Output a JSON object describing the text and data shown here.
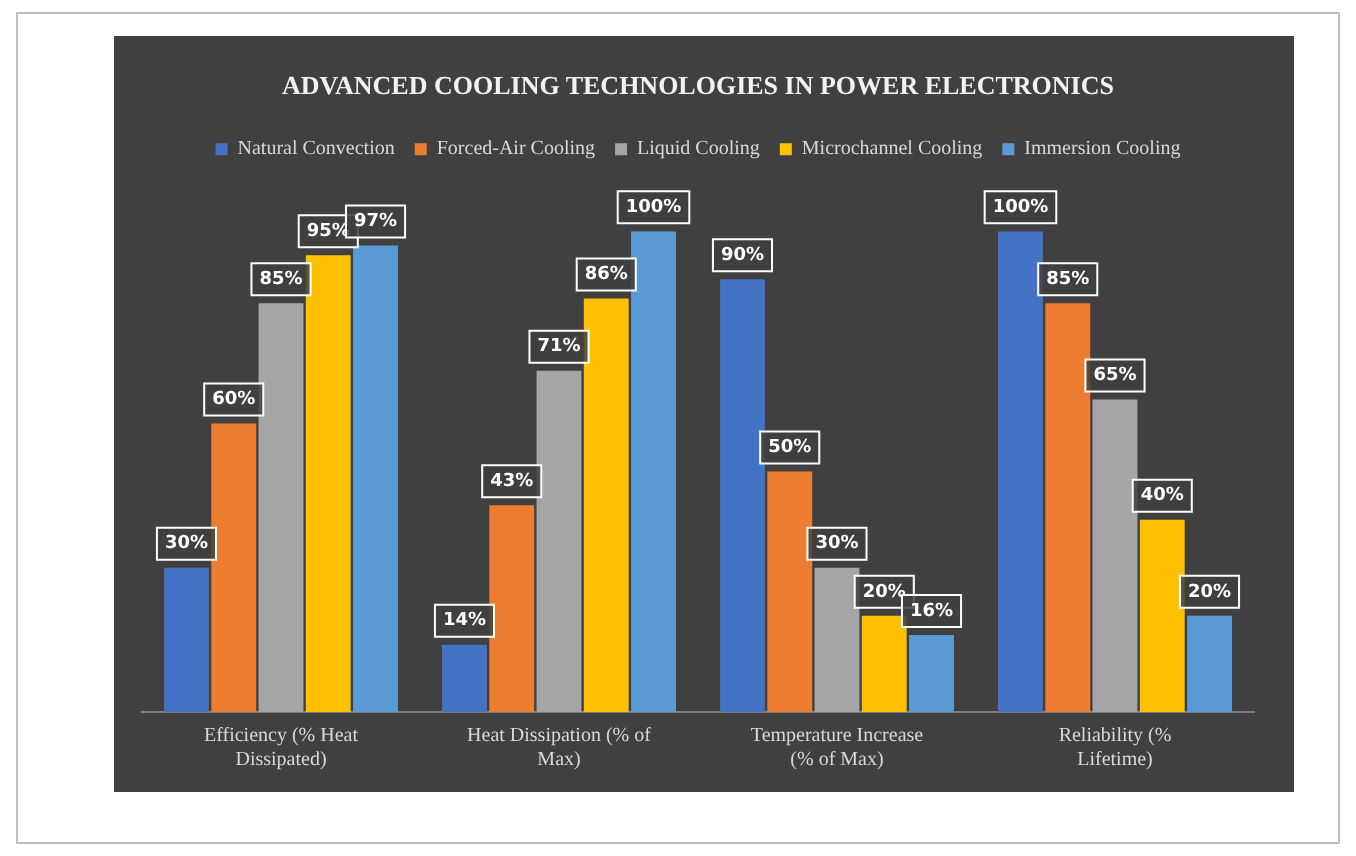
{
  "chart_data": {
    "type": "bar",
    "title": "ADVANCED COOLING TECHNOLOGIES IN POWER ELECTRONICS",
    "categories": [
      "Efficiency (% Heat Dissipated)",
      "Heat Dissipation (% of Max)",
      "Temperature Increase (% of Max)",
      "Reliability (% Lifetime)"
    ],
    "series": [
      {
        "name": "Natural Convection",
        "color": "#4472c4",
        "values": [
          30,
          14,
          90,
          100
        ],
        "value_labels": [
          "30%",
          "14%",
          "90%",
          "100%"
        ]
      },
      {
        "name": "Forced-Air Cooling",
        "color": "#ed7d31",
        "values": [
          60,
          43,
          50,
          85
        ],
        "value_labels": [
          "60%",
          "43%",
          "50%",
          "85%"
        ]
      },
      {
        "name": "Liquid Cooling",
        "color": "#a5a5a5",
        "values": [
          85,
          71,
          30,
          65
        ],
        "value_labels": [
          "85%",
          "71%",
          "30%",
          "65%"
        ]
      },
      {
        "name": "Microchannel Cooling",
        "color": "#ffc000",
        "values": [
          95,
          86,
          20,
          40
        ],
        "value_labels": [
          "95%",
          "86%",
          "20%",
          "40%"
        ]
      },
      {
        "name": "Immersion Cooling",
        "color": "#5b9bd5",
        "values": [
          97,
          100,
          16,
          20
        ],
        "value_labels": [
          "97%",
          "100%",
          "16%",
          "20%"
        ]
      }
    ],
    "legend": "top",
    "grid": false
  }
}
